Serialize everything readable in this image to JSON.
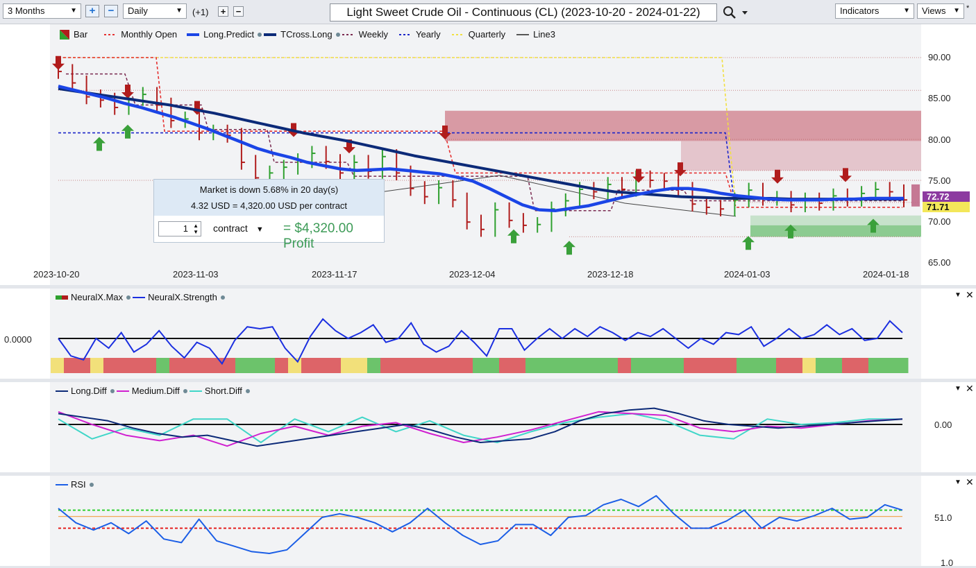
{
  "toolbar": {
    "range": "3 Months",
    "interval": "Daily",
    "offset": "(+1)",
    "title": "Light Sweet Crude Oil - Continuous (CL) (2023-10-20 - 2024-01-22)",
    "indicators": "Indicators",
    "views": "Views"
  },
  "legend_main": [
    "Bar",
    "Monthly Open",
    "Long.Predict",
    "TCross.Long",
    "Weekly",
    "Yearly",
    "Quarterly",
    "Line3"
  ],
  "tooltip": {
    "line1": "Market is down 5.68% in 20 day(s)",
    "line2": "4.32 USD = 4,320.00 USD per contract",
    "qty": "1",
    "unit": "contract",
    "profit": "= $4,320.00 Profit"
  },
  "price_tags": {
    "upper": "72.72",
    "lower": "71.71"
  },
  "colors": {
    "bull": "#2ea02e",
    "bear": "#b01c1c",
    "long_predict": "#1b45e6",
    "tcross": "#0c2a78",
    "weekly": "#7a2a50",
    "yearly": "#1a24c8",
    "quarterly": "#f2e040",
    "monthly_open": "#e53030"
  },
  "chart_data": [
    {
      "type": "line",
      "title": "Light Sweet Crude Oil - Continuous (CL) (2023-10-20 - 2024-01-22)",
      "x_ticks": [
        "2023-10-20",
        "2023-11-03",
        "2023-11-17",
        "2023-12-04",
        "2023-12-18",
        "2024-01-03",
        "2024-01-18"
      ],
      "y_ticks": [
        "90.00",
        "85.00",
        "80.00",
        "75.00",
        "70.00",
        "65.00"
      ],
      "ylim": [
        65,
        91
      ],
      "closes": [
        88.3,
        86.9,
        85.2,
        84.8,
        83.9,
        85.0,
        85.5,
        84.2,
        82.3,
        82.5,
        80.8,
        80.9,
        80.5,
        77.2,
        75.3,
        75.9,
        76.6,
        77.4,
        78.3,
        77.3,
        75.9,
        77.2,
        76.1,
        77.9,
        75.9,
        74.0,
        73.0,
        74.1,
        72.6,
        69.9,
        69.0,
        71.4,
        70.1,
        69.5,
        69.6,
        71.5,
        72.5,
        73.9,
        73.6,
        74.5,
        73.9,
        75.3,
        75.0,
        74.9,
        73.9,
        72.1,
        71.7,
        71.5,
        72.6,
        73.8,
        72.8,
        72.8,
        72.0,
        72.6,
        72.2,
        73.1,
        72.7,
        73.4,
        73.9,
        73.6,
        72.6
      ],
      "series": [
        {
          "name": "Long.Predict",
          "values": [
            86.5,
            86.0,
            85.5,
            85.0,
            84.4,
            83.9,
            83.3,
            82.7,
            82.0,
            81.3,
            80.5,
            79.7,
            78.9,
            78.3,
            77.8,
            77.2,
            76.8,
            76.4,
            76.2,
            76.3,
            76.4,
            76.2,
            76.0,
            75.8,
            75.4,
            74.9,
            74.0,
            73.0,
            72.0,
            71.4,
            71.3,
            71.6,
            71.9,
            72.4,
            72.9,
            73.3,
            73.7,
            74.0,
            74.0,
            73.8,
            73.4,
            73.1,
            72.9,
            72.7,
            72.6,
            72.6,
            72.6,
            72.7,
            72.7,
            72.8,
            72.8,
            72.8
          ]
        },
        {
          "name": "TCross.Long",
          "values": [
            86.2,
            85.8,
            85.4,
            85.0,
            84.6,
            84.2,
            83.7,
            83.2,
            82.6,
            82.0,
            81.4,
            80.8,
            80.3,
            79.8,
            79.2,
            78.6,
            78.0,
            77.5,
            77.0,
            76.5,
            76.0,
            75.5,
            75.0,
            74.5,
            74.0,
            73.6,
            73.4,
            73.2,
            73.0,
            72.9,
            72.8,
            72.8,
            72.8,
            72.7,
            72.7,
            72.7,
            72.7,
            72.7,
            72.7
          ]
        },
        {
          "name": "Monthly Open",
          "levels": [
            90.0,
            81.0,
            75.9,
            71.7
          ]
        },
        {
          "name": "Weekly",
          "levels": [
            88.0,
            84.2,
            81.2,
            77.2,
            75.5,
            71.3,
            73.8,
            72.5
          ]
        },
        {
          "name": "Yearly",
          "levels": [
            80.8
          ]
        },
        {
          "name": "Quarterly",
          "levels": [
            90.0
          ]
        }
      ]
    },
    {
      "type": "line",
      "legend": [
        "NeuralX.Max",
        "NeuralX.Strength"
      ],
      "y_ticks": [
        "0.0000"
      ],
      "series": [
        {
          "name": "NeuralX.Strength",
          "values": [
            0.0,
            -0.9,
            -1.1,
            0.0,
            -0.5,
            0.3,
            -0.7,
            -0.3,
            0.4,
            -0.4,
            -1.0,
            -0.2,
            -0.5,
            -1.3,
            -0.1,
            0.6,
            0.5,
            0.6,
            -0.5,
            -1.2,
            0.1,
            1.0,
            0.4,
            0.0,
            0.3,
            0.7,
            -0.2,
            0.0,
            0.8,
            -0.3,
            -0.7,
            -0.4,
            0.4,
            -0.2,
            -0.9,
            0.5,
            0.5,
            -0.6,
            0.0,
            0.5,
            0.0,
            0.5,
            0.1,
            0.6,
            0.3,
            -0.1,
            0.3,
            0.1,
            0.5,
            0.0,
            -0.5,
            0.0,
            -0.3,
            0.3,
            0.2,
            0.6,
            -0.4,
            0.0,
            0.5,
            0.0,
            0.2,
            0.7,
            0.2,
            0.5,
            -0.1,
            0.0,
            0.9,
            0.3
          ]
        }
      ]
    },
    {
      "type": "line",
      "legend": [
        "Long.Diff",
        "Medium.Diff",
        "Short.Diff"
      ],
      "y_ticks": [
        "0.00"
      ],
      "series": [
        {
          "name": "Long.Diff",
          "values": [
            0.6,
            0.4,
            0.2,
            -0.2,
            -0.5,
            -0.7,
            -0.6,
            -0.9,
            -1.2,
            -1.0,
            -0.8,
            -0.6,
            -0.4,
            -0.2,
            0.0,
            -0.3,
            -0.7,
            -1.0,
            -0.9,
            -0.8,
            -0.4,
            0.2,
            0.6,
            0.8,
            0.9,
            0.6,
            0.2,
            0.0,
            -0.1,
            -0.2,
            -0.1,
            0.0,
            0.1,
            0.2,
            0.3
          ]
        },
        {
          "name": "Medium.Diff",
          "values": [
            0.7,
            0.0,
            -0.6,
            -0.9,
            -0.6,
            -1.2,
            -0.5,
            -0.1,
            -0.6,
            -0.1,
            0.1,
            -0.5,
            -1.0,
            -0.7,
            -0.3,
            0.2,
            0.7,
            0.6,
            0.5,
            -0.2,
            -0.4,
            -0.1,
            -0.2,
            0.0,
            0.2,
            0.3
          ]
        },
        {
          "name": "Short.Diff",
          "values": [
            0.3,
            -0.8,
            -0.2,
            -0.6,
            0.3,
            0.3,
            -1.0,
            0.3,
            -0.4,
            0.4,
            -0.4,
            0.2,
            -0.6,
            -1.0,
            -0.4,
            0.1,
            0.4,
            0.6,
            0.2,
            -0.6,
            -0.8,
            0.3,
            0.0,
            0.1,
            0.3,
            0.3
          ]
        }
      ]
    },
    {
      "type": "line",
      "legend": [
        "RSI"
      ],
      "y_ticks": [
        "51.0",
        "1.0"
      ],
      "series": [
        {
          "name": "RSI",
          "values": [
            60,
            44,
            36,
            44,
            32,
            46,
            26,
            22,
            48,
            24,
            18,
            12,
            10,
            14,
            32,
            50,
            54,
            50,
            44,
            34,
            44,
            60,
            44,
            30,
            20,
            24,
            42,
            42,
            30,
            50,
            52,
            64,
            70,
            62,
            74,
            54,
            38,
            38,
            46,
            58,
            38,
            50,
            46,
            52,
            60,
            48,
            50,
            64,
            58
          ]
        }
      ]
    }
  ]
}
